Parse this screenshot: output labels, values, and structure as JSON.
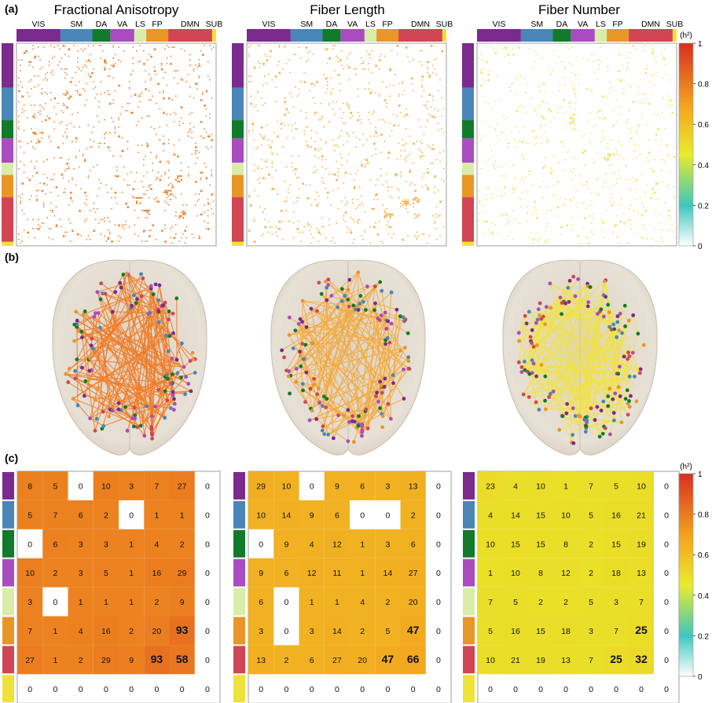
{
  "panel_labels": {
    "a": "(a)",
    "b": "(b)",
    "c": "(c)"
  },
  "networks": [
    "VIS",
    "SM",
    "DA",
    "VA",
    "LS",
    "FP",
    "DMN",
    "SUB"
  ],
  "network_colors": {
    "VIS": "#7b2a8e",
    "SM": "#4a86b8",
    "DA": "#127a2b",
    "VA": "#a84cc0",
    "LS": "#d9eca8",
    "FP": "#e89628",
    "DMN": "#d04654",
    "SUB": "#f0e23a"
  },
  "colorscale": {
    "stops": [
      "#ffffff",
      "#3fc6bf",
      "#e8ec2a",
      "#f4a020",
      "#d7301f"
    ],
    "unit": "(h²)"
  },
  "colorbar_ticks": [
    "0",
    "0.2",
    "0.4",
    "0.6",
    "0.8",
    "1"
  ],
  "chart_data": [
    {
      "type": "heatmap",
      "title": "Fractional Anisotropy",
      "point_color": "#f07b24",
      "matrix_note": "sparse heritability matrix (dots)"
    },
    {
      "type": "heatmap",
      "title": "Fiber Length",
      "point_color": "#f5a93a",
      "matrix_note": "sparse heritability matrix (dots)"
    },
    {
      "type": "heatmap",
      "title": "Fiber Number",
      "point_color": "#f2d83c",
      "matrix_note": "sparse heritability matrix (dots)"
    },
    {
      "type": "heatmap",
      "panel": "c-left",
      "edge_color": "#f07b24",
      "rows": [
        "VIS",
        "SM",
        "DA",
        "VA",
        "LS",
        "FP",
        "DMN",
        "SUB"
      ],
      "cols": [
        "VIS",
        "SM",
        "DA",
        "VA",
        "LS",
        "FP",
        "DMN",
        "SUB"
      ],
      "values": [
        [
          8,
          5,
          0,
          10,
          3,
          7,
          27,
          0
        ],
        [
          5,
          7,
          6,
          2,
          0,
          1,
          1,
          0
        ],
        [
          0,
          6,
          3,
          3,
          1,
          4,
          2,
          0
        ],
        [
          10,
          2,
          3,
          5,
          1,
          16,
          29,
          0
        ],
        [
          3,
          0,
          1,
          1,
          1,
          2,
          9,
          0
        ],
        [
          7,
          1,
          4,
          16,
          2,
          20,
          93,
          0
        ],
        [
          27,
          1,
          2,
          29,
          9,
          93,
          58,
          0
        ],
        [
          0,
          0,
          0,
          0,
          0,
          0,
          0,
          0
        ]
      ],
      "bold": [
        [
          5,
          6
        ],
        [
          6,
          5
        ],
        [
          6,
          6
        ]
      ]
    },
    {
      "type": "heatmap",
      "panel": "c-middle",
      "edge_color": "#f5a93a",
      "rows": [
        "VIS",
        "SM",
        "DA",
        "VA",
        "LS",
        "FP",
        "DMN",
        "SUB"
      ],
      "cols": [
        "VIS",
        "SM",
        "DA",
        "VA",
        "LS",
        "FP",
        "DMN",
        "SUB"
      ],
      "values": [
        [
          29,
          10,
          0,
          9,
          6,
          3,
          13,
          0
        ],
        [
          10,
          14,
          9,
          6,
          0,
          0,
          2,
          0
        ],
        [
          0,
          9,
          4,
          12,
          1,
          3,
          6,
          0
        ],
        [
          9,
          6,
          12,
          11,
          1,
          14,
          27,
          0
        ],
        [
          6,
          0,
          1,
          1,
          4,
          2,
          20,
          0
        ],
        [
          3,
          0,
          3,
          14,
          2,
          5,
          47,
          0
        ],
        [
          13,
          2,
          6,
          27,
          20,
          47,
          66,
          0
        ],
        [
          0,
          0,
          0,
          0,
          0,
          0,
          0,
          0
        ]
      ],
      "bold": [
        [
          5,
          6
        ],
        [
          6,
          5
        ],
        [
          6,
          6
        ]
      ]
    },
    {
      "type": "heatmap",
      "panel": "c-right",
      "edge_color": "#f2d83c",
      "rows": [
        "VIS",
        "SM",
        "DA",
        "VA",
        "LS",
        "FP",
        "DMN",
        "SUB"
      ],
      "cols": [
        "VIS",
        "SM",
        "DA",
        "VA",
        "LS",
        "FP",
        "DMN",
        "SUB"
      ],
      "values": [
        [
          23,
          4,
          10,
          1,
          7,
          5,
          10,
          0
        ],
        [
          4,
          14,
          15,
          10,
          5,
          16,
          21,
          0
        ],
        [
          10,
          15,
          15,
          8,
          2,
          15,
          19,
          0
        ],
        [
          1,
          10,
          8,
          12,
          2,
          18,
          13,
          0
        ],
        [
          7,
          5,
          2,
          2,
          5,
          3,
          7,
          0
        ],
        [
          5,
          16,
          15,
          18,
          3,
          7,
          25,
          0
        ],
        [
          10,
          21,
          19,
          13,
          7,
          25,
          32,
          0
        ],
        [
          0,
          0,
          0,
          0,
          0,
          0,
          0,
          0
        ]
      ],
      "bold": [
        [
          5,
          6
        ],
        [
          6,
          5
        ],
        [
          6,
          6
        ]
      ]
    }
  ]
}
